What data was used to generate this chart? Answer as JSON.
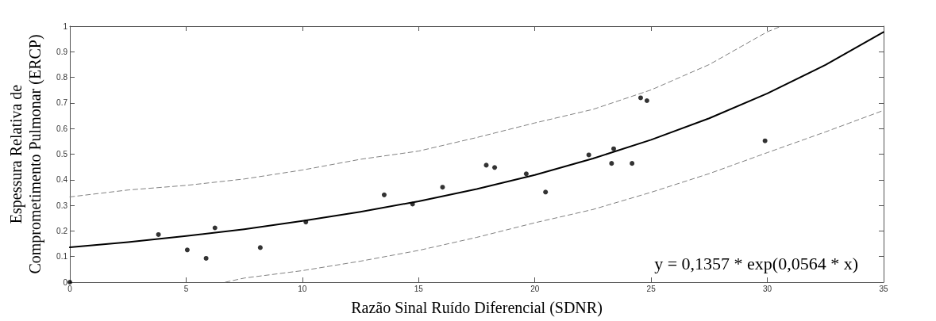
{
  "chart_data": {
    "type": "scatter",
    "xlabel": "Razão Sinal Ruído Diferencial (SDNR)",
    "ylabel": "Espessura Relativa de\nComprometimento Pulmonar (ERCP)",
    "xlim": [
      0,
      35
    ],
    "xticks": [
      0,
      5,
      10,
      15,
      20,
      25,
      30,
      35
    ],
    "ylim": [
      0,
      1
    ],
    "yticks": [
      0,
      0.1,
      0.2,
      0.3,
      0.4,
      0.5,
      0.6,
      0.7,
      0.8,
      0.9,
      1
    ],
    "grid": false,
    "marker": "circle",
    "annotations": [
      "y = 0,1357 * exp(0,0564 * x)"
    ],
    "series": [
      {
        "color": "#000000",
        "x": [
          0,
          3.81,
          5.05,
          5.86,
          6.24,
          8.19,
          10.15,
          13.52,
          14.74,
          16.03,
          17.91,
          18.27,
          19.63,
          20.46,
          22.32,
          23.3,
          23.39,
          24.18,
          24.55,
          24.82,
          29.9
        ],
        "values": [
          0,
          0.186,
          0.126,
          0.093,
          0.212,
          0.135,
          0.235,
          0.341,
          0.305,
          0.371,
          0.457,
          0.448,
          0.423,
          0.352,
          0.497,
          0.464,
          0.521,
          0.464,
          0.72,
          0.709,
          0.552
        ]
      },
      {
        "type": "line",
        "color": "#000000",
        "line_style": "solid",
        "marker": "none",
        "x": [
          0,
          2.5,
          5,
          7.5,
          10,
          12.5,
          15,
          17.5,
          20,
          22.5,
          25,
          27.5,
          30,
          32.5,
          35
        ],
        "values": [
          0.136,
          0.156,
          0.18,
          0.207,
          0.239,
          0.275,
          0.316,
          0.364,
          0.419,
          0.483,
          0.556,
          0.64,
          0.737,
          0.849,
          0.977
        ]
      },
      {
        "type": "line",
        "color": "#808080",
        "line_style": "dashed",
        "marker": "none",
        "x": [
          0,
          2.5,
          5,
          7.5,
          10,
          12.5,
          15,
          17.5,
          20,
          22.5,
          25,
          27.5,
          30,
          30.6
        ],
        "values": [
          0.333,
          0.36,
          0.378,
          0.403,
          0.438,
          0.48,
          0.512,
          0.565,
          0.622,
          0.675,
          0.751,
          0.85,
          0.978,
          1
        ]
      },
      {
        "type": "line",
        "color": "#808080",
        "line_style": "dashed",
        "marker": "none",
        "x": [
          6.69,
          7.5,
          10,
          12.5,
          15,
          17.5,
          20,
          22.5,
          25,
          27.5,
          30,
          32.5,
          35
        ],
        "values": [
          0,
          0.016,
          0.045,
          0.082,
          0.124,
          0.175,
          0.232,
          0.284,
          0.351,
          0.424,
          0.506,
          0.587,
          0.671
        ]
      }
    ]
  }
}
